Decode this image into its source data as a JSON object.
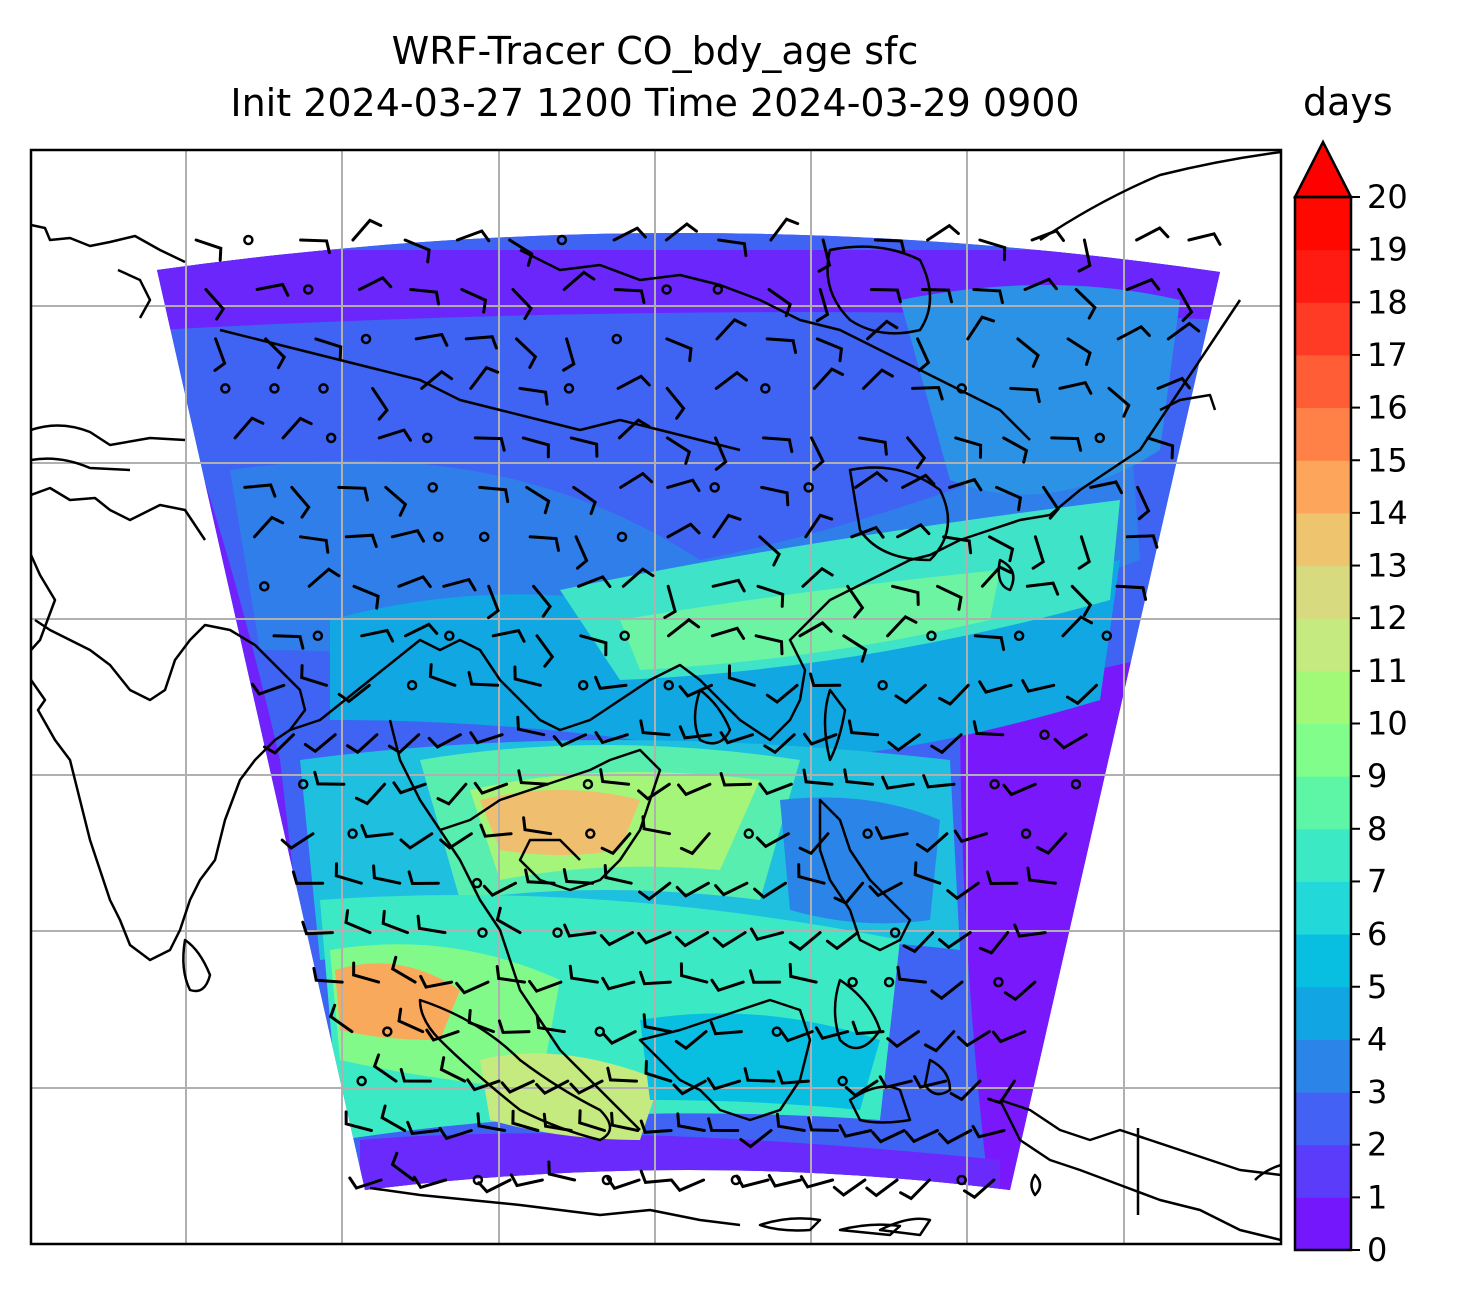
{
  "title": {
    "line1": "WRF-Tracer CO_bdy_age sfc",
    "line2": "Init 2024-03-27 1200 Time 2024-03-29 0900"
  },
  "colorbar": {
    "units": "days",
    "min": 0,
    "max": 20,
    "extend": "max",
    "tick_labels": [
      "0",
      "1",
      "2",
      "3",
      "4",
      "5",
      "6",
      "7",
      "8",
      "9",
      "10",
      "11",
      "12",
      "13",
      "14",
      "15",
      "16",
      "17",
      "18",
      "19",
      "20"
    ],
    "colors": [
      "#7417fc",
      "#5b3cfb",
      "#4361f4",
      "#2b85e9",
      "#11a5e4",
      "#08bfe2",
      "#22d8d8",
      "#3beac4",
      "#5cf6a6",
      "#80fd8a",
      "#a2f877",
      "#c4ea80",
      "#d8da80",
      "#efc46e",
      "#fca55b",
      "#ff8148",
      "#ff5d36",
      "#ff3b25",
      "#ff1b12",
      "#ff0800"
    ],
    "extend_color": "#ff0000"
  },
  "map": {
    "field": "CO_bdy_age",
    "level": "sfc",
    "overlay": "wind barbs",
    "gridlines": true,
    "region": "Southeast Asia / South China Sea"
  }
}
